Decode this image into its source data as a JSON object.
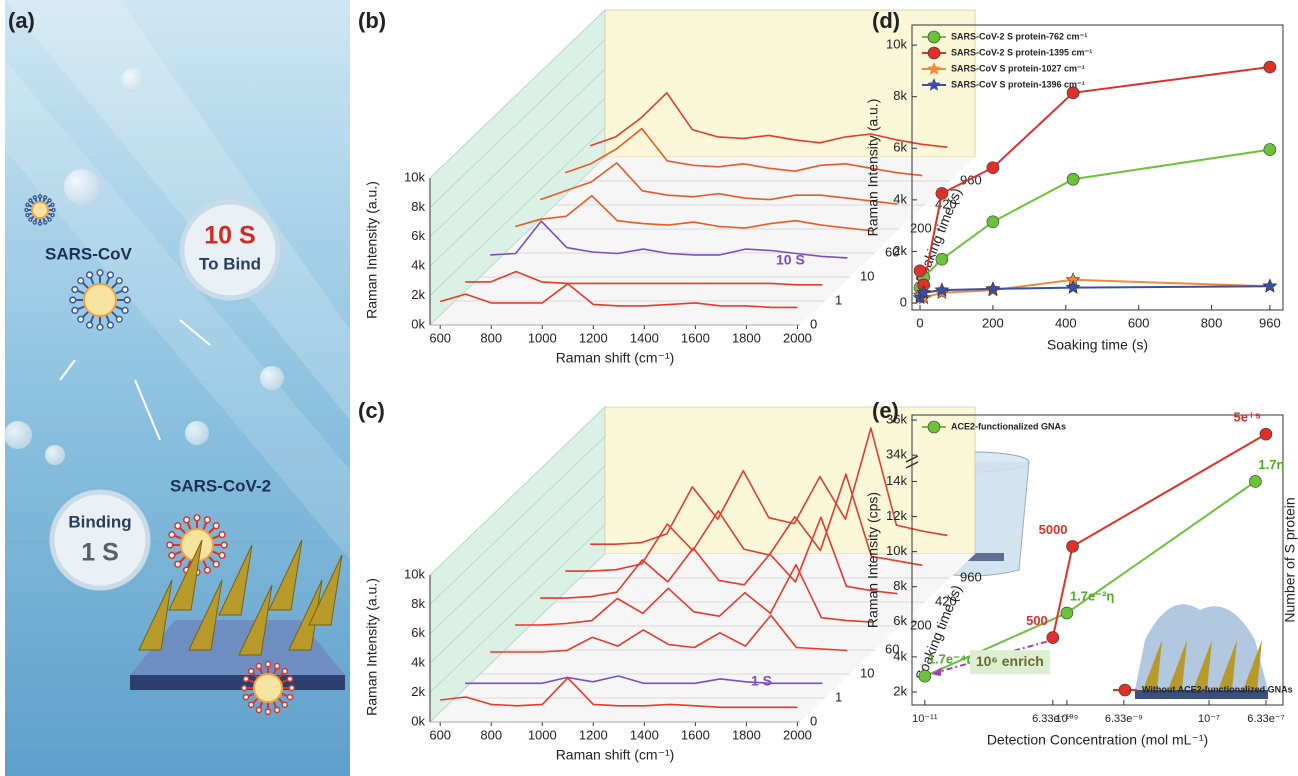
{
  "illustration": {
    "label": "(a)",
    "virus_1": "SARS-CoV",
    "virus_2": "SARS-CoV-2",
    "bubble_1": [
      "10 S",
      "To Bind"
    ],
    "bubble_2": [
      "Binding",
      "1 S"
    ]
  },
  "chart_data": [
    {
      "type": "waterfall",
      "label": "(b)",
      "x_label": "Raman shift (cm⁻¹)",
      "y_label": "Raman Intensity (a.u.)",
      "z_label": "Soaking time (s)",
      "x": [
        600,
        700,
        800,
        900,
        1000,
        1100,
        1200,
        1300,
        1400,
        1500,
        1600,
        1700,
        1800,
        1900,
        2000
      ],
      "xlim": [
        560,
        2010
      ],
      "xticks": [
        600,
        800,
        1000,
        1200,
        1400,
        1600,
        1800,
        2000
      ],
      "ylim": [
        0,
        10000
      ],
      "yticks": [
        {
          "value": 0,
          "label": "0k"
        },
        {
          "value": 2000,
          "label": "2k"
        },
        {
          "value": 4000,
          "label": "4k"
        },
        {
          "value": 6000,
          "label": "6k"
        },
        {
          "value": 8000,
          "label": "8k"
        },
        {
          "value": 10000,
          "label": "10k"
        }
      ],
      "series": [
        {
          "name": "0",
          "color": "#e53b2c",
          "values": [
            1600,
            2100,
            1500,
            1500,
            1500,
            2800,
            1400,
            1300,
            1300,
            1400,
            1500,
            1300,
            1300,
            1200,
            1200
          ]
        },
        {
          "name": "1",
          "color": "#e53b2c",
          "values": [
            1300,
            1300,
            2000,
            1300,
            1200,
            1200,
            1200,
            1200,
            1200,
            1200,
            1200,
            1200,
            1200,
            1100,
            1100
          ]
        },
        {
          "name": "10",
          "color": "#7b4fc0",
          "label": "10 S",
          "values": [
            1500,
            1600,
            3800,
            2000,
            1700,
            1600,
            1900,
            1600,
            1500,
            1500,
            1900,
            1800,
            1600,
            1400,
            1300
          ]
        },
        {
          "name": "60",
          "color": "#ea5a25",
          "values": [
            1800,
            2300,
            2500,
            3900,
            2200,
            2000,
            1900,
            2100,
            1800,
            1700,
            2000,
            2200,
            1900,
            1700,
            1500
          ]
        },
        {
          "name": "200",
          "color": "#ea5a25",
          "values": [
            2000,
            2600,
            3200,
            4500,
            2600,
            2300,
            2200,
            2400,
            2100,
            2000,
            2300,
            2300,
            2100,
            1900,
            1700
          ]
        },
        {
          "name": "420",
          "color": "#ea5a25",
          "values": [
            2200,
            2800,
            3800,
            5200,
            3000,
            2700,
            2600,
            2800,
            2500,
            2300,
            2700,
            2800,
            2500,
            2200,
            2000
          ]
        },
        {
          "name": "960",
          "color": "#e53b2c",
          "values": [
            2400,
            3000,
            4300,
            6000,
            3500,
            3000,
            2900,
            3100,
            2800,
            2600,
            3000,
            3200,
            2800,
            2500,
            2300
          ]
        }
      ]
    },
    {
      "type": "waterfall",
      "label": "(c)",
      "x_label": "Raman shift (cm⁻¹)",
      "y_label": "Raman Intensity (a.u.)",
      "z_label": "Soaking time (s)",
      "x": [
        600,
        700,
        800,
        900,
        1000,
        1100,
        1200,
        1300,
        1400,
        1500,
        1600,
        1700,
        1800,
        1900,
        2000
      ],
      "xlim": [
        560,
        2010
      ],
      "xticks": [
        600,
        800,
        1000,
        1200,
        1400,
        1600,
        1800,
        2000
      ],
      "ylim": [
        0,
        10000
      ],
      "yticks": [
        {
          "value": 0,
          "label": "0k"
        },
        {
          "value": 2000,
          "label": "2k"
        },
        {
          "value": 4000,
          "label": "4k"
        },
        {
          "value": 6000,
          "label": "6k"
        },
        {
          "value": 8000,
          "label": "8k"
        },
        {
          "value": 10000,
          "label": "10k"
        }
      ],
      "series": [
        {
          "name": "0",
          "color": "#e53b2c",
          "values": [
            1500,
            1700,
            1200,
            1100,
            1200,
            3000,
            1200,
            1100,
            1100,
            1200,
            1100,
            1000,
            1000,
            1000,
            1000
          ]
        },
        {
          "name": "1",
          "color": "#7b4fc0",
          "label": "1 S",
          "values": [
            1000,
            1000,
            1000,
            1000,
            1400,
            1100,
            1500,
            1000,
            1000,
            1000,
            1300,
            1100,
            1000,
            1000,
            1000
          ]
        },
        {
          "name": "10",
          "color": "#e53b2c",
          "values": [
            1500,
            1500,
            1500,
            1600,
            2500,
            1900,
            3000,
            2000,
            1800,
            2800,
            1900,
            4000,
            1800,
            1700,
            1600
          ]
        },
        {
          "name": "60",
          "color": "#e53b2c",
          "values": [
            1700,
            1700,
            1800,
            2000,
            3500,
            2500,
            4200,
            2600,
            2300,
            3900,
            2500,
            5800,
            2200,
            2000,
            1900
          ]
        },
        {
          "name": "200",
          "color": "#e53b2c",
          "values": [
            1900,
            1900,
            2000,
            2300,
            4500,
            3000,
            5300,
            3100,
            2800,
            4900,
            3000,
            7400,
            2700,
            2400,
            2200
          ]
        },
        {
          "name": "420",
          "color": "#e53b2c",
          "values": [
            2100,
            2100,
            2200,
            2600,
            5300,
            3500,
            6200,
            3600,
            3200,
            5800,
            3500,
            8700,
            3100,
            2800,
            2500
          ]
        },
        {
          "name": "960",
          "color": "#e53b2c",
          "values": [
            2300,
            2300,
            2400,
            3000,
            6200,
            4000,
            7300,
            4100,
            3700,
            6900,
            4000,
            10200,
            3600,
            3200,
            2900
          ]
        }
      ]
    },
    {
      "type": "line",
      "label": "(d)",
      "x_label": "Soaking time (s)",
      "y_label": "Raman Intensity (a.u.)",
      "x": [
        0,
        10,
        60,
        200,
        420,
        960
      ],
      "xlim": [
        -22,
        996
      ],
      "xticks": [
        0,
        200,
        400,
        600,
        800,
        960
      ],
      "ylim": [
        -270,
        10780
      ],
      "yticks": [
        0,
        {
          "value": 2000,
          "label": "2k"
        },
        {
          "value": 4000,
          "label": "4k"
        },
        {
          "value": 6000,
          "label": "6k"
        },
        {
          "value": 8000,
          "label": "8k"
        },
        {
          "value": 10000,
          "label": "10k"
        }
      ],
      "legend": "upper left",
      "series": [
        {
          "name": "SARS-CoV-2 S protein-762 cm⁻¹",
          "color": "#6cc23a",
          "marker": "circle",
          "values": [
            600,
            1000,
            1700,
            3150,
            4800,
            5950
          ]
        },
        {
          "name": "SARS-CoV-2 S protein-1395 cm⁻¹",
          "color": "#e0302a",
          "marker": "circle",
          "values": [
            1250,
            700,
            4250,
            5250,
            8150,
            9150
          ]
        },
        {
          "name": "SARS-CoV S protein-1027 cm⁻¹",
          "color": "#f08a3c",
          "marker": "star",
          "values": [
            300,
            200,
            400,
            500,
            900,
            650
          ]
        },
        {
          "name": "SARS-CoV S protein-1396 cm⁻¹",
          "color": "#3a4fa8",
          "marker": "star",
          "values": [
            200,
            400,
            500,
            550,
            600,
            650
          ]
        }
      ]
    },
    {
      "type": "line",
      "label": "(e)",
      "x_label": "Detection Concentration (mol mL⁻¹)",
      "y_label": "Raman Intensity (cps)",
      "y2_label": "Number of S protein",
      "xscale": "log",
      "xlim": [
        6.6e-12,
        1.1e-06
      ],
      "xticks": [
        {
          "value": 1e-11,
          "label": "10⁻¹¹"
        },
        {
          "value": 6.33e-10,
          "label": "6.33e⁻¹⁰"
        },
        {
          "value": 1e-09,
          "label": "10⁻⁹"
        },
        {
          "value": 6.33e-09,
          "label": "6.33e⁻⁹"
        },
        {
          "value": 1e-07,
          "label": "10⁻⁷"
        },
        {
          "value": 6.33e-07,
          "label": "6.33e⁻⁷"
        }
      ],
      "ylim": [
        1257,
        36290
      ],
      "ybreak": [
        15000,
        33500
      ],
      "yticks": [
        {
          "value": 2000,
          "label": "2k"
        },
        {
          "value": 4000,
          "label": "4k"
        },
        {
          "value": 6000,
          "label": "6k"
        },
        {
          "value": 8000,
          "label": "8k"
        },
        {
          "value": 10000,
          "label": "10k"
        },
        {
          "value": 12000,
          "label": "12k"
        },
        {
          "value": 14000,
          "label": "14k"
        },
        {
          "value": 34000,
          "label": "34k"
        },
        {
          "value": 36000,
          "label": "36k"
        }
      ],
      "legend": [
        "upper left",
        "lower right"
      ],
      "annotation": "10⁶ enrich",
      "series": [
        {
          "name": "ACE2-functionalized GNAs",
          "color": "#6cc23a",
          "marker": "circle",
          "x": [
            1e-11,
            1e-09,
            4.5e-07
          ],
          "values": [
            2900,
            6500,
            14000
          ],
          "point_labels": [
            "1.7e⁻⁴η",
            "1.7e⁻²η",
            "1.7η"
          ]
        },
        {
          "name": "Without ACE2-functionalized GNAs",
          "color": "#e0302a",
          "marker": "circle",
          "x": [
            6.33e-10,
            1.2e-09,
            6.33e-07
          ],
          "values": [
            5100,
            10300,
            35200
          ],
          "point_labels": [
            "500",
            "5000",
            "5e⁺⁵"
          ]
        }
      ]
    }
  ]
}
